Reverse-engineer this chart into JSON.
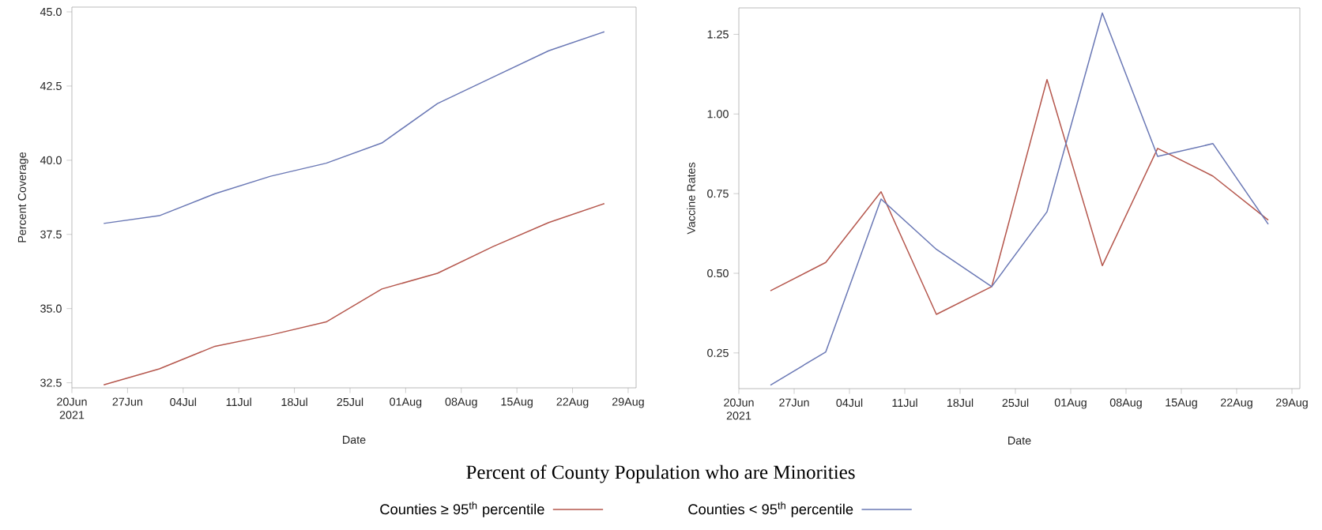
{
  "chart_data": [
    {
      "type": "line",
      "title": "Percent of County Population who are Minorities",
      "xlabel": "Date",
      "ylabel": "Percent Coverage",
      "legend": "bottom",
      "grid": false,
      "x": [
        "2021-06-24",
        "2021-07-01",
        "2021-07-08",
        "2021-07-15",
        "2021-07-22",
        "2021-07-29",
        "2021-08-05",
        "2021-08-12",
        "2021-08-19",
        "2021-08-26"
      ],
      "series": [
        {
          "name": "Counties ≥ 95$^{th}$ percentile",
          "color": "#b5574d",
          "values": [
            32.43,
            32.97,
            33.73,
            34.11,
            34.55,
            35.66,
            36.19,
            37.09,
            37.9,
            38.54
          ]
        },
        {
          "name": "Counties < 95$^{th}$ percentile",
          "color": "#6a78b5",
          "values": [
            37.87,
            38.13,
            38.87,
            39.46,
            39.9,
            40.58,
            41.91,
            42.8,
            43.69,
            44.33
          ]
        }
      ],
      "xlim": [
        "2021-06-20",
        "2021-08-30"
      ],
      "ylim": [
        32.33,
        45.16
      ],
      "xticks": [
        {
          "value": "2021-06-20",
          "label": "20Jun 2021"
        },
        {
          "value": "2021-06-27",
          "label": "27Jun"
        },
        {
          "value": "2021-07-04",
          "label": "04Jul"
        },
        {
          "value": "2021-07-11",
          "label": "11Jul"
        },
        {
          "value": "2021-07-18",
          "label": "18Jul"
        },
        {
          "value": "2021-07-25",
          "label": "25Jul"
        },
        {
          "value": "2021-08-01",
          "label": "01Aug"
        },
        {
          "value": "2021-08-08",
          "label": "08Aug"
        },
        {
          "value": "2021-08-15",
          "label": "15Aug"
        },
        {
          "value": "2021-08-22",
          "label": "22Aug"
        },
        {
          "value": "2021-08-29",
          "label": "29Aug"
        }
      ],
      "yticks": [
        {
          "value": 32.5,
          "label": "32.5"
        },
        {
          "value": 35,
          "label": "35.0"
        },
        {
          "value": 37.5,
          "label": "37.5"
        },
        {
          "value": 40,
          "label": "40.0"
        },
        {
          "value": 42.5,
          "label": "42.5"
        },
        {
          "value": 45,
          "label": "45.0"
        }
      ]
    },
    {
      "type": "line",
      "xlabel": "Date",
      "ylabel": "Vaccine Rates",
      "grid": false,
      "x": [
        "2021-06-24",
        "2021-07-01",
        "2021-07-08",
        "2021-07-15",
        "2021-07-22",
        "2021-07-29",
        "2021-08-05",
        "2021-08-12",
        "2021-08-19",
        "2021-08-26"
      ],
      "series": [
        {
          "color": "#b5574d",
          "values": [
            0.445,
            0.534,
            0.756,
            0.371,
            0.458,
            1.108,
            0.524,
            0.892,
            0.805,
            0.667
          ]
        },
        {
          "color": "#6a78b5",
          "values": [
            0.149,
            0.253,
            0.733,
            0.575,
            0.458,
            0.693,
            1.317,
            0.867,
            0.907,
            0.654
          ]
        }
      ],
      "xlim": [
        "2021-06-20",
        "2021-08-30"
      ],
      "ylim": [
        0.138,
        1.333
      ],
      "xticks": [
        {
          "value": "2021-06-20",
          "label": "20Jun 2021"
        },
        {
          "value": "2021-06-27",
          "label": "27Jun"
        },
        {
          "value": "2021-07-04",
          "label": "04Jul"
        },
        {
          "value": "2021-07-11",
          "label": "11Jul"
        },
        {
          "value": "2021-07-18",
          "label": "18Jul"
        },
        {
          "value": "2021-07-25",
          "label": "25Jul"
        },
        {
          "value": "2021-08-01",
          "label": "01Aug"
        },
        {
          "value": "2021-08-08",
          "label": "08Aug"
        },
        {
          "value": "2021-08-15",
          "label": "15Aug"
        },
        {
          "value": "2021-08-22",
          "label": "22Aug"
        },
        {
          "value": "2021-08-29",
          "label": "29Aug"
        }
      ],
      "yticks": [
        {
          "value": 0.25,
          "label": "0.25"
        },
        {
          "value": 0.5,
          "label": "0.50"
        },
        {
          "value": 0.75,
          "label": "0.75"
        },
        {
          "value": 1.0,
          "label": "1.00"
        },
        {
          "value": 1.25,
          "label": "1.25"
        }
      ]
    }
  ]
}
